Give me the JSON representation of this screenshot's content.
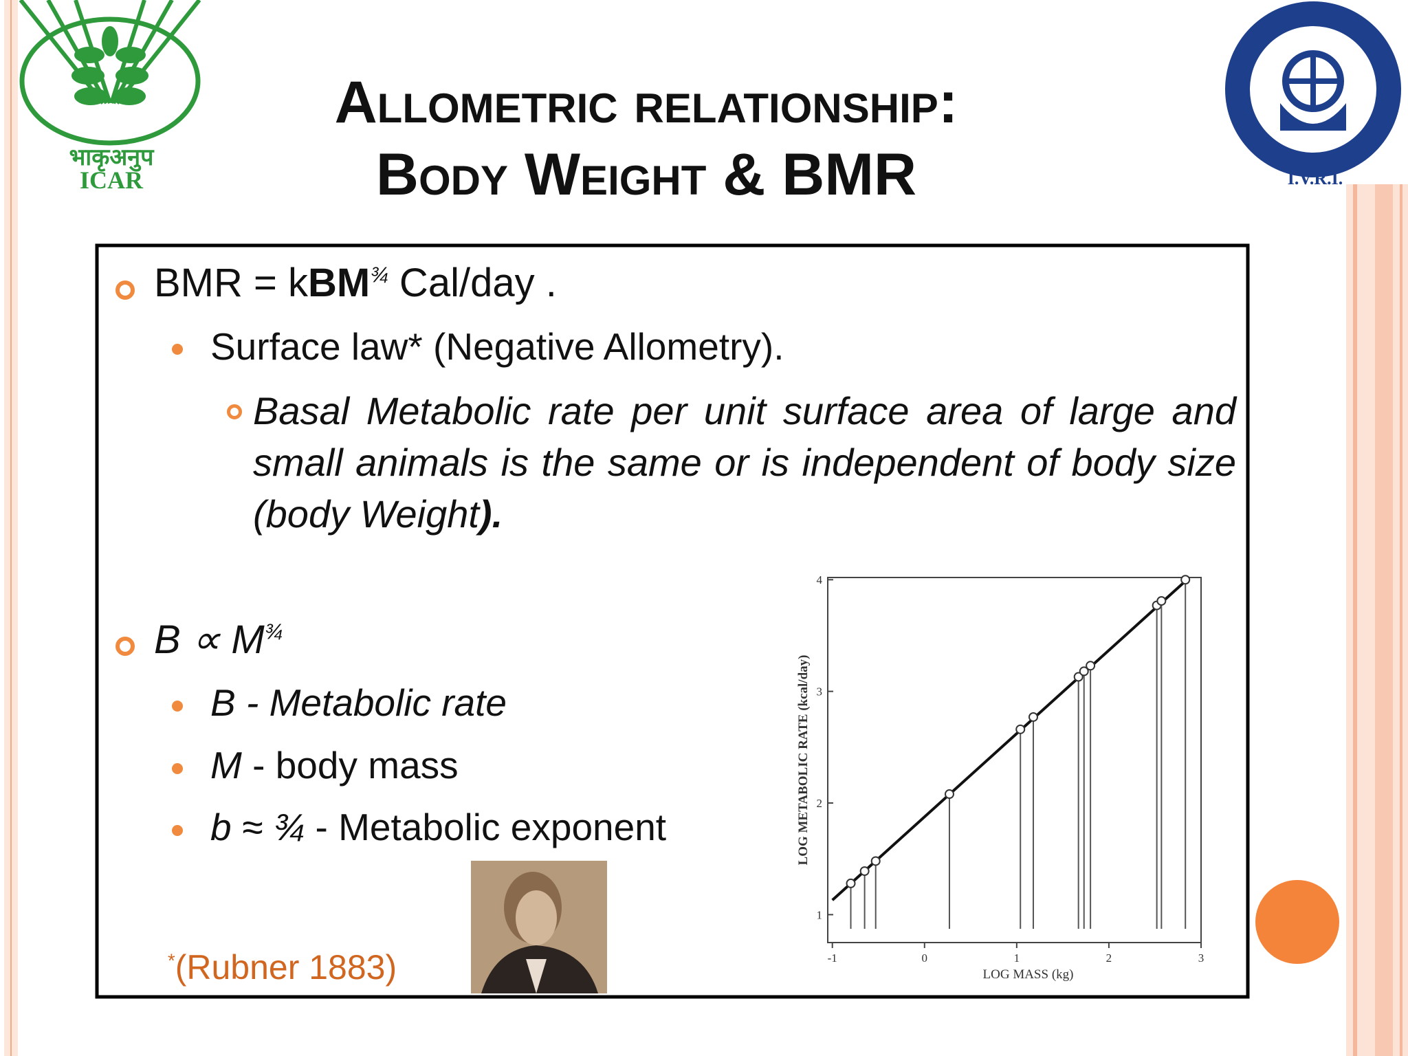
{
  "header": {
    "title_line1": "Allometric relationship:",
    "title_line2": "Body Weight & BMR"
  },
  "logos": {
    "icar_hindi": "भाकृअनुप",
    "icar": "ICAR",
    "ivri": "I.V.R.I."
  },
  "bullets": [
    {
      "parts": [
        "BMR = k",
        "BM",
        "¾",
        " Cal/day ."
      ],
      "sub": {
        "text": "Surface law* (Negative Allometry).",
        "detail": [
          "Basal Metabolic rate per unit surface area of large and small animals is the same or is independent of body size (body Weight",
          ")."
        ]
      }
    },
    {
      "parts": [
        "B ∝  M",
        "¾"
      ],
      "items": [
        [
          "B",
          " - Metabolic rate"
        ],
        [
          "M",
          " - body mass"
        ],
        [
          "b ≈ ¾",
          " - Metabolic exponent"
        ]
      ]
    }
  ],
  "citation": {
    "mark": "*",
    "text": "(Rubner 1883)"
  },
  "figure": {
    "type": "scatter",
    "x_label": "LOG MASS (kg)",
    "y_label": "LOG METABOLIC RATE (kcal/day)",
    "xlim": [
      -1.05,
      3.0
    ],
    "ylim": [
      0.75,
      4.02
    ],
    "xticks": [
      -1,
      0,
      1,
      2,
      3
    ],
    "yticks": [
      1,
      2,
      3,
      4
    ],
    "x": [
      -0.8,
      -0.65,
      -0.53,
      0.27,
      1.04,
      1.18,
      1.67,
      1.73,
      1.8,
      2.52,
      2.57,
      2.83
    ],
    "y": [
      1.28,
      1.39,
      1.48,
      2.08,
      2.66,
      2.77,
      3.13,
      3.18,
      3.23,
      3.77,
      3.81,
      4.0
    ],
    "fit": {
      "x": [
        -1,
        2.86
      ],
      "y": [
        1.13,
        4.01
      ]
    }
  }
}
